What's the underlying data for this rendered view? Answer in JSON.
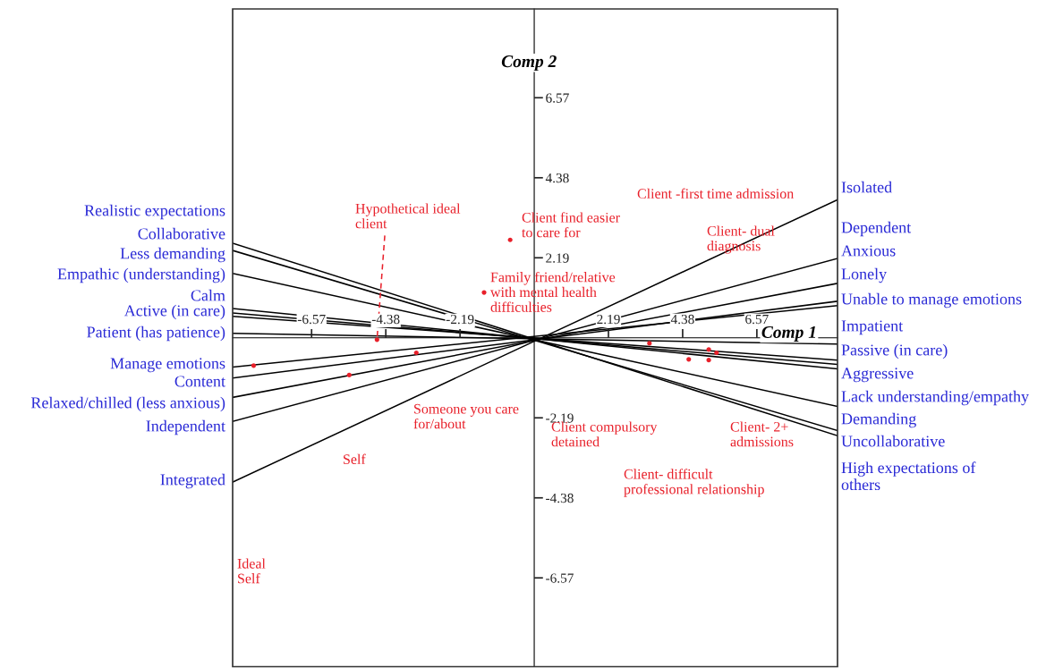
{
  "chart_data": {
    "type": "scatter",
    "xlabel": "Comp 1",
    "ylabel": "Comp 2",
    "xlim": [
      -8.9,
      8.95
    ],
    "ylim": [
      -9,
      9
    ],
    "xticks": [
      -6.57,
      -4.38,
      -2.19,
      2.19,
      4.38,
      6.57
    ],
    "yticks": [
      -6.57,
      -4.38,
      -2.19,
      2.19,
      4.38,
      6.57
    ],
    "grid": false,
    "series": [
      {
        "color": "#e8202a",
        "marker": "circle",
        "x": [
          -0.71,
          -1.48,
          -4.64,
          -3.48,
          -5.46,
          -8.28,
          3.4,
          4.56,
          5.15,
          5.15,
          5.38
        ],
        "values": [
          2.68,
          1.24,
          -0.05,
          -0.41,
          -1.02,
          -0.76,
          -0.15,
          -0.59,
          -0.32,
          -0.61,
          -0.41
        ]
      },
      {
        "type": "line",
        "color": "#000000",
        "x": [
          -8.9,
          8.95
        ],
        "values": [
          2.59,
          -2.68
        ]
      },
      {
        "type": "line",
        "color": "#000000",
        "x": [
          -8.9,
          8.95
        ],
        "values": [
          2.39,
          -2.54
        ]
      },
      {
        "type": "line",
        "color": "#000000",
        "x": [
          -8.9,
          8.95
        ],
        "values": [
          1.76,
          -1.88
        ]
      },
      {
        "type": "line",
        "color": "#000000",
        "x": [
          -8.9,
          8.95
        ],
        "values": [
          0.8,
          -0.85
        ]
      },
      {
        "type": "line",
        "color": "#000000",
        "x": [
          -8.9,
          8.95
        ],
        "values": [
          0.68,
          -0.73
        ]
      },
      {
        "type": "line",
        "color": "#000000",
        "x": [
          -8.9,
          8.95
        ],
        "values": [
          0.59,
          -0.61
        ]
      },
      {
        "type": "line",
        "color": "#000000",
        "x": [
          -8.9,
          8.95
        ],
        "values": [
          0.12,
          -0.17
        ]
      },
      {
        "type": "line",
        "color": "#000000",
        "x": [
          -8.9,
          8.95
        ],
        "values": [
          -0.8,
          0.88
        ]
      },
      {
        "type": "line",
        "color": "#000000",
        "x": [
          -8.9,
          8.95
        ],
        "values": [
          -1.1,
          1.0
        ]
      },
      {
        "type": "line",
        "color": "#000000",
        "x": [
          -8.9,
          8.95
        ],
        "values": [
          -1.63,
          1.49
        ]
      },
      {
        "type": "line",
        "color": "#000000",
        "x": [
          -8.9,
          8.95
        ],
        "values": [
          -2.29,
          2.17
        ]
      },
      {
        "type": "line",
        "color": "#000000",
        "x": [
          -8.9,
          8.95
        ],
        "values": [
          -3.95,
          3.78
        ]
      },
      {
        "type": "line",
        "color": "#e8202a",
        "line_style": "dashed",
        "x": [
          -4.41,
          -4.64
        ],
        "values": [
          2.8,
          -0.05
        ]
      }
    ],
    "annotations": [
      "Realistic expectations",
      "Collaborative",
      "Less demanding",
      "Empathic (understanding)",
      "Calm",
      "Active (in care)",
      "Patient (has patience)",
      "Manage emotions",
      "Content",
      "Relaxed/chilled (less anxious)",
      "Independent",
      "Integrated",
      "Isolated",
      "Dependent",
      "Anxious",
      "Lonely",
      "Unable to manage emotions",
      "Impatient",
      "Passive (in care)",
      "Aggressive",
      "Lack understanding/empathy",
      "Demanding",
      "Uncollaborative",
      "High expectations of\nothers",
      "Hypothetical ideal\nclient",
      "Client find easier\nto care for",
      "Family friend/relative\nwith mental health\ndifficulties",
      "Someone you care\nfor/about",
      "Self",
      "Ideal\nSelf",
      "Client -first time admission",
      "Client- dual\ndiagnosis",
      "Client compulsory\ndetained",
      "Client- 2+\nadmissions",
      "Client- difficult\nprofessional relationship"
    ]
  }
}
